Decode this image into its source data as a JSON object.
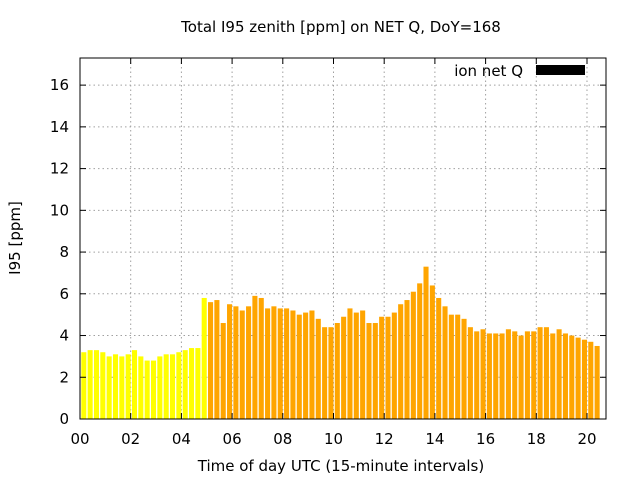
{
  "chart_data": {
    "type": "bar",
    "title": "Total I95 zenith [ppm] on NET Q, DoY=168",
    "xlabel": "Time of day UTC (15-minute intervals)",
    "ylabel": "I95 [ppm]",
    "xlim": [
      0,
      20.75
    ],
    "ylim": [
      0,
      17.3
    ],
    "x_ticks": [
      "00",
      "02",
      "04",
      "06",
      "08",
      "10",
      "12",
      "14",
      "16",
      "18",
      "20"
    ],
    "y_ticks": [
      "0",
      "2",
      "4",
      "6",
      "8",
      "10",
      "12",
      "14",
      "16"
    ],
    "grid": true,
    "legend": {
      "placement": "top-right",
      "entries": [
        {
          "name": "ion net Q",
          "color": "#000000"
        }
      ]
    },
    "colors": {
      "low": "#ffff00",
      "high": "#ffa500"
    },
    "series": [
      {
        "name": "ion net Q",
        "x": [
          0.25,
          0.5,
          0.75,
          1.0,
          1.25,
          1.5,
          1.75,
          2.0,
          2.25,
          2.5,
          2.75,
          3.0,
          3.25,
          3.5,
          3.75,
          4.0,
          4.25,
          4.5,
          4.75,
          5.0,
          5.25,
          5.5,
          5.75,
          6.0,
          6.25,
          6.5,
          6.75,
          7.0,
          7.25,
          7.5,
          7.75,
          8.0,
          8.25,
          8.5,
          8.75,
          9.0,
          9.25,
          9.5,
          9.75,
          10.0,
          10.25,
          10.5,
          10.75,
          11.0,
          11.25,
          11.5,
          11.75,
          12.0,
          12.25,
          12.5,
          12.75,
          13.0,
          13.25,
          13.5,
          13.75,
          14.0,
          14.25,
          14.5,
          14.75,
          15.0,
          15.25,
          15.5,
          15.75,
          16.0,
          16.25,
          16.5,
          16.75,
          17.0,
          17.25,
          17.5,
          17.75,
          18.0,
          18.25,
          18.5,
          18.75,
          19.0,
          19.25,
          19.5,
          19.75,
          20.0,
          20.25,
          20.5
        ],
        "values": [
          3.2,
          3.3,
          3.3,
          3.2,
          3.0,
          3.1,
          3.0,
          3.1,
          3.3,
          3.0,
          2.8,
          2.8,
          3.0,
          3.1,
          3.1,
          3.2,
          3.3,
          3.4,
          3.4,
          5.8,
          5.6,
          5.7,
          4.6,
          5.5,
          5.4,
          5.2,
          5.4,
          5.9,
          5.8,
          5.3,
          5.4,
          5.3,
          5.3,
          5.2,
          5.0,
          5.1,
          5.2,
          4.8,
          4.4,
          4.4,
          4.6,
          4.9,
          5.3,
          5.1,
          5.2,
          4.6,
          4.6,
          4.9,
          4.9,
          5.1,
          5.5,
          5.7,
          6.1,
          6.5,
          7.3,
          6.4,
          5.8,
          5.4,
          5.0,
          5.0,
          4.8,
          4.4,
          4.2,
          4.3,
          4.1,
          4.1,
          4.1,
          4.3,
          4.2,
          4.0,
          4.2,
          4.2,
          4.4,
          4.4,
          4.1,
          4.3,
          4.1,
          4.0,
          3.9,
          3.8,
          3.7,
          3.5
        ],
        "threshold": 5,
        "below_threshold_color": "#ffff00",
        "above_threshold_color": "#ffa500"
      }
    ]
  }
}
